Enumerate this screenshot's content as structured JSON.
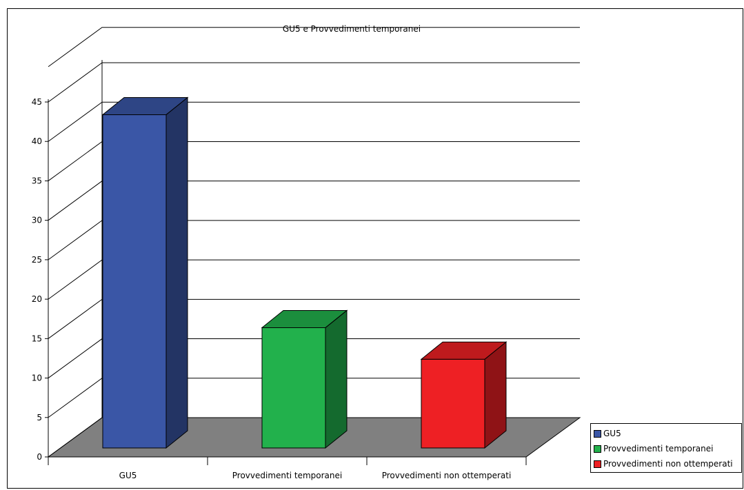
{
  "chart_data": {
    "type": "bar",
    "title": "GU5 e Provvedimenti temporanei",
    "categories": [
      "GU5",
      "Provvedimenti temporanei",
      "Provvedimenti non ottemperati"
    ],
    "values": [
      44,
      17,
      13
    ],
    "ylim": [
      0,
      45
    ],
    "yticks": [
      0,
      5,
      10,
      15,
      20,
      25,
      30,
      35,
      40,
      45
    ],
    "grid": true,
    "legend": "bottom-right",
    "series": [
      {
        "name": "GU5",
        "color": "#3a56a6"
      },
      {
        "name": "Provvedimenti temporanei",
        "color": "#22b14c"
      },
      {
        "name": "Provvedimenti non ottemperati",
        "color": "#ee2024"
      }
    ],
    "floor_color": "#808080"
  }
}
